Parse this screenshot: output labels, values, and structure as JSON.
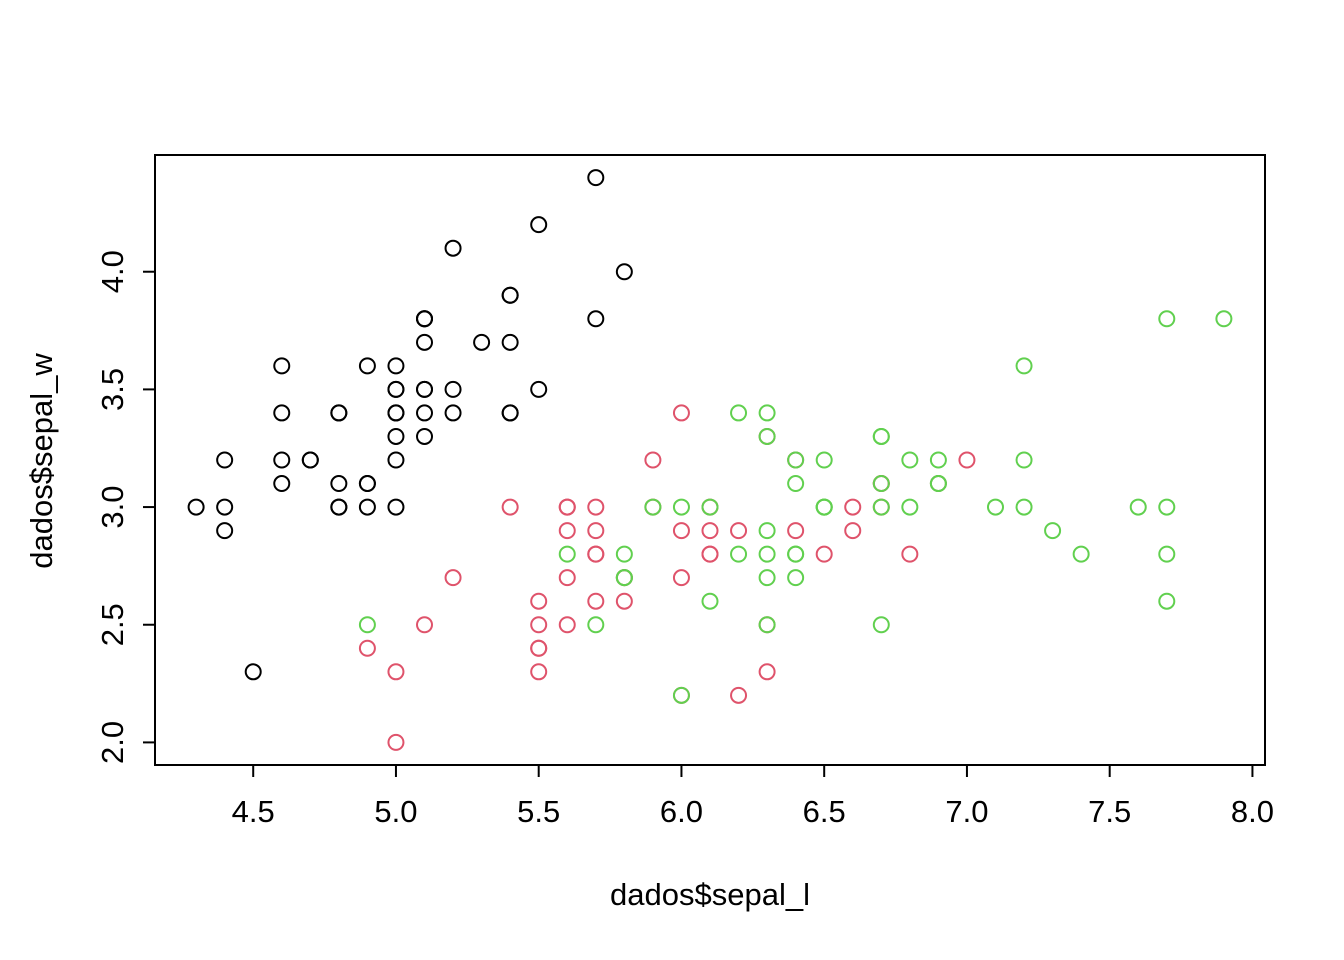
{
  "chart_data": {
    "type": "scatter",
    "title": "",
    "xlabel": "dados$sepal_l",
    "ylabel": "dados$sepal_w",
    "xlim": [
      4.156,
      8.044
    ],
    "ylim": [
      1.904,
      4.496
    ],
    "x_ticks": [
      4.5,
      5.0,
      5.5,
      6.0,
      6.5,
      7.0,
      7.5,
      8.0
    ],
    "x_tick_labels": [
      "4.5",
      "5.0",
      "5.5",
      "6.0",
      "6.5",
      "7.0",
      "7.5",
      "8.0"
    ],
    "y_ticks": [
      2.0,
      2.5,
      3.0,
      3.5,
      4.0
    ],
    "y_tick_labels": [
      "2.0",
      "2.5",
      "3.0",
      "3.5",
      "4.0"
    ],
    "grid": false,
    "legend": "none",
    "marker": "open-circle",
    "axis_color": "#000000",
    "background_color": "#FFFFFF",
    "series": [
      {
        "name": "black",
        "color": "#000000",
        "points": [
          [
            5.1,
            3.5
          ],
          [
            4.9,
            3.0
          ],
          [
            4.7,
            3.2
          ],
          [
            4.6,
            3.1
          ],
          [
            5.0,
            3.6
          ],
          [
            5.4,
            3.9
          ],
          [
            4.6,
            3.4
          ],
          [
            5.0,
            3.4
          ],
          [
            4.4,
            2.9
          ],
          [
            4.9,
            3.1
          ],
          [
            5.4,
            3.7
          ],
          [
            4.8,
            3.4
          ],
          [
            4.8,
            3.0
          ],
          [
            4.3,
            3.0
          ],
          [
            5.8,
            4.0
          ],
          [
            5.7,
            4.4
          ],
          [
            5.4,
            3.9
          ],
          [
            5.1,
            3.5
          ],
          [
            5.7,
            3.8
          ],
          [
            5.1,
            3.8
          ],
          [
            5.4,
            3.4
          ],
          [
            5.1,
            3.7
          ],
          [
            4.6,
            3.6
          ],
          [
            5.1,
            3.3
          ],
          [
            4.8,
            3.4
          ],
          [
            5.0,
            3.0
          ],
          [
            5.0,
            3.4
          ],
          [
            5.2,
            3.5
          ],
          [
            5.2,
            3.4
          ],
          [
            4.7,
            3.2
          ],
          [
            4.8,
            3.1
          ],
          [
            5.4,
            3.4
          ],
          [
            5.2,
            4.1
          ],
          [
            5.5,
            4.2
          ],
          [
            4.9,
            3.1
          ],
          [
            5.0,
            3.2
          ],
          [
            5.5,
            3.5
          ],
          [
            4.9,
            3.6
          ],
          [
            4.4,
            3.0
          ],
          [
            5.1,
            3.4
          ],
          [
            5.0,
            3.5
          ],
          [
            4.5,
            2.3
          ],
          [
            4.4,
            3.2
          ],
          [
            5.0,
            3.5
          ],
          [
            5.1,
            3.8
          ],
          [
            4.8,
            3.0
          ],
          [
            5.1,
            3.8
          ],
          [
            4.6,
            3.2
          ],
          [
            5.3,
            3.7
          ],
          [
            5.0,
            3.3
          ]
        ]
      },
      {
        "name": "red",
        "color": "#DF536B",
        "points": [
          [
            7.0,
            3.2
          ],
          [
            6.4,
            3.2
          ],
          [
            6.9,
            3.1
          ],
          [
            5.5,
            2.3
          ],
          [
            6.5,
            2.8
          ],
          [
            5.7,
            2.8
          ],
          [
            6.3,
            3.3
          ],
          [
            4.9,
            2.4
          ],
          [
            6.6,
            2.9
          ],
          [
            5.2,
            2.7
          ],
          [
            5.0,
            2.0
          ],
          [
            5.9,
            3.0
          ],
          [
            6.0,
            2.2
          ],
          [
            6.1,
            2.9
          ],
          [
            5.6,
            2.9
          ],
          [
            6.7,
            3.1
          ],
          [
            5.6,
            3.0
          ],
          [
            5.8,
            2.7
          ],
          [
            6.2,
            2.2
          ],
          [
            5.6,
            2.5
          ],
          [
            5.9,
            3.2
          ],
          [
            6.1,
            2.8
          ],
          [
            6.3,
            2.5
          ],
          [
            6.1,
            2.8
          ],
          [
            6.4,
            2.9
          ],
          [
            6.6,
            3.0
          ],
          [
            6.8,
            2.8
          ],
          [
            6.7,
            3.0
          ],
          [
            6.0,
            2.9
          ],
          [
            5.7,
            2.6
          ],
          [
            5.5,
            2.4
          ],
          [
            5.5,
            2.4
          ],
          [
            5.8,
            2.7
          ],
          [
            6.0,
            2.7
          ],
          [
            5.4,
            3.0
          ],
          [
            6.0,
            3.4
          ],
          [
            6.7,
            3.1
          ],
          [
            6.3,
            2.3
          ],
          [
            5.6,
            3.0
          ],
          [
            5.5,
            2.5
          ],
          [
            5.5,
            2.6
          ],
          [
            6.1,
            3.0
          ],
          [
            5.8,
            2.6
          ],
          [
            5.0,
            2.3
          ],
          [
            5.6,
            2.7
          ],
          [
            5.7,
            3.0
          ],
          [
            5.7,
            2.9
          ],
          [
            6.2,
            2.9
          ],
          [
            5.1,
            2.5
          ],
          [
            5.7,
            2.8
          ]
        ]
      },
      {
        "name": "green",
        "color": "#61D04F",
        "points": [
          [
            6.3,
            3.3
          ],
          [
            5.8,
            2.7
          ],
          [
            7.1,
            3.0
          ],
          [
            6.3,
            2.9
          ],
          [
            6.5,
            3.0
          ],
          [
            7.6,
            3.0
          ],
          [
            4.9,
            2.5
          ],
          [
            7.3,
            2.9
          ],
          [
            6.7,
            2.5
          ],
          [
            7.2,
            3.6
          ],
          [
            6.5,
            3.2
          ],
          [
            6.4,
            2.7
          ],
          [
            6.8,
            3.0
          ],
          [
            5.7,
            2.5
          ],
          [
            5.8,
            2.8
          ],
          [
            6.4,
            3.2
          ],
          [
            6.5,
            3.0
          ],
          [
            7.7,
            3.8
          ],
          [
            7.7,
            2.6
          ],
          [
            6.0,
            2.2
          ],
          [
            6.9,
            3.2
          ],
          [
            5.6,
            2.8
          ],
          [
            7.7,
            2.8
          ],
          [
            6.3,
            2.7
          ],
          [
            6.7,
            3.3
          ],
          [
            7.2,
            3.2
          ],
          [
            6.2,
            2.8
          ],
          [
            6.1,
            3.0
          ],
          [
            6.4,
            2.8
          ],
          [
            7.2,
            3.0
          ],
          [
            7.4,
            2.8
          ],
          [
            7.9,
            3.8
          ],
          [
            6.4,
            2.8
          ],
          [
            6.3,
            2.8
          ],
          [
            6.1,
            2.6
          ],
          [
            7.7,
            3.0
          ],
          [
            6.3,
            3.4
          ],
          [
            6.4,
            3.1
          ],
          [
            6.0,
            3.0
          ],
          [
            6.9,
            3.1
          ],
          [
            6.7,
            3.1
          ],
          [
            6.9,
            3.1
          ],
          [
            5.8,
            2.7
          ],
          [
            6.8,
            3.2
          ],
          [
            6.7,
            3.3
          ],
          [
            6.7,
            3.0
          ],
          [
            6.3,
            2.5
          ],
          [
            6.5,
            3.0
          ],
          [
            6.2,
            3.4
          ],
          [
            5.9,
            3.0
          ]
        ]
      }
    ]
  }
}
